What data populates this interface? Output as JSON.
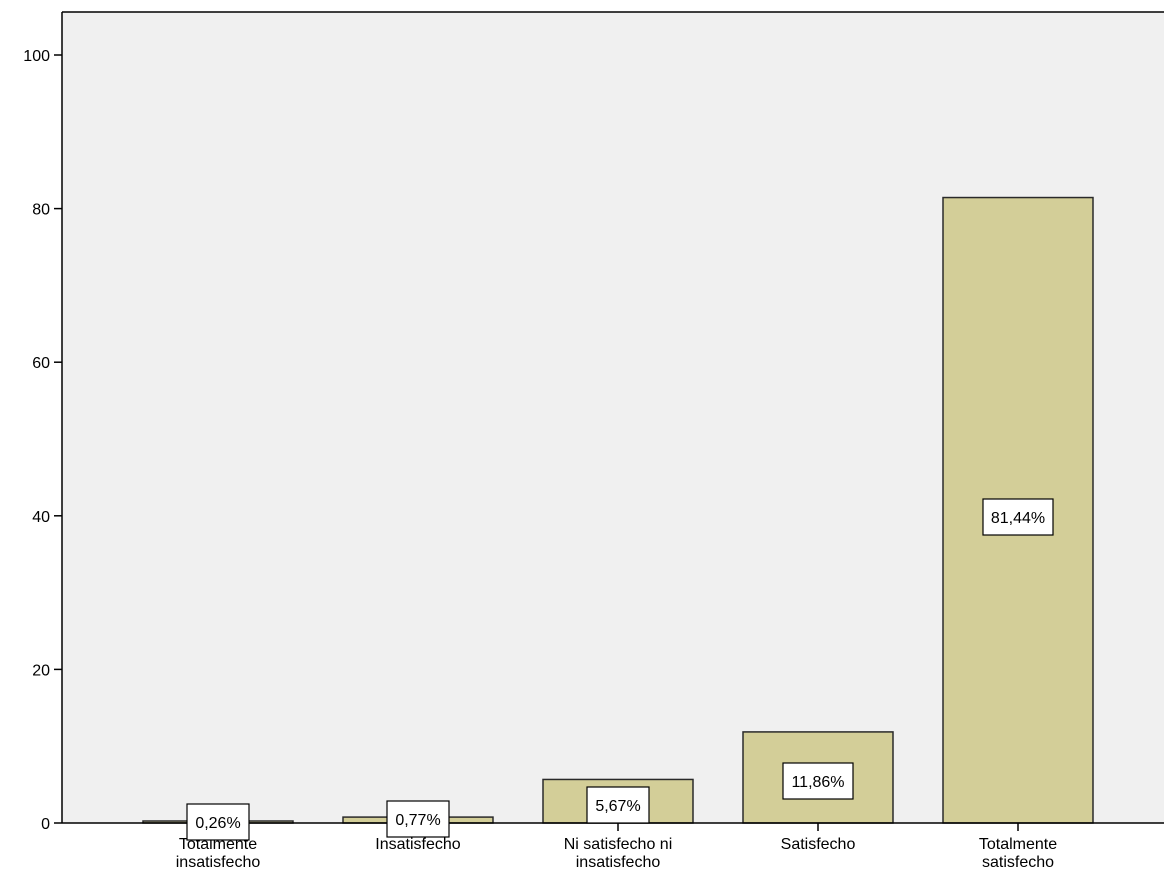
{
  "chart_data": {
    "type": "bar",
    "categories": [
      [
        "Totalmente",
        "insatisfecho"
      ],
      [
        "Insatisfecho"
      ],
      [
        "Ni satisfecho ni",
        "insatisfecho"
      ],
      [
        "Satisfecho"
      ],
      [
        "Totalmente",
        "satisfecho"
      ]
    ],
    "values": [
      0.26,
      0.77,
      5.67,
      11.86,
      81.44
    ],
    "data_labels": [
      "0,26%",
      "0,77%",
      "5,67%",
      "11,86%",
      "81,44%"
    ],
    "yticks": [
      "0",
      "20",
      "40",
      "60",
      "80",
      "100"
    ],
    "ylim": [
      0,
      100
    ],
    "grid": false,
    "colors": {
      "bar_fill": "#d3ce98",
      "bar_stroke": "#2a2a2a",
      "plot_bg": "#f0f0f0",
      "label_bg": "#ffffff"
    }
  }
}
